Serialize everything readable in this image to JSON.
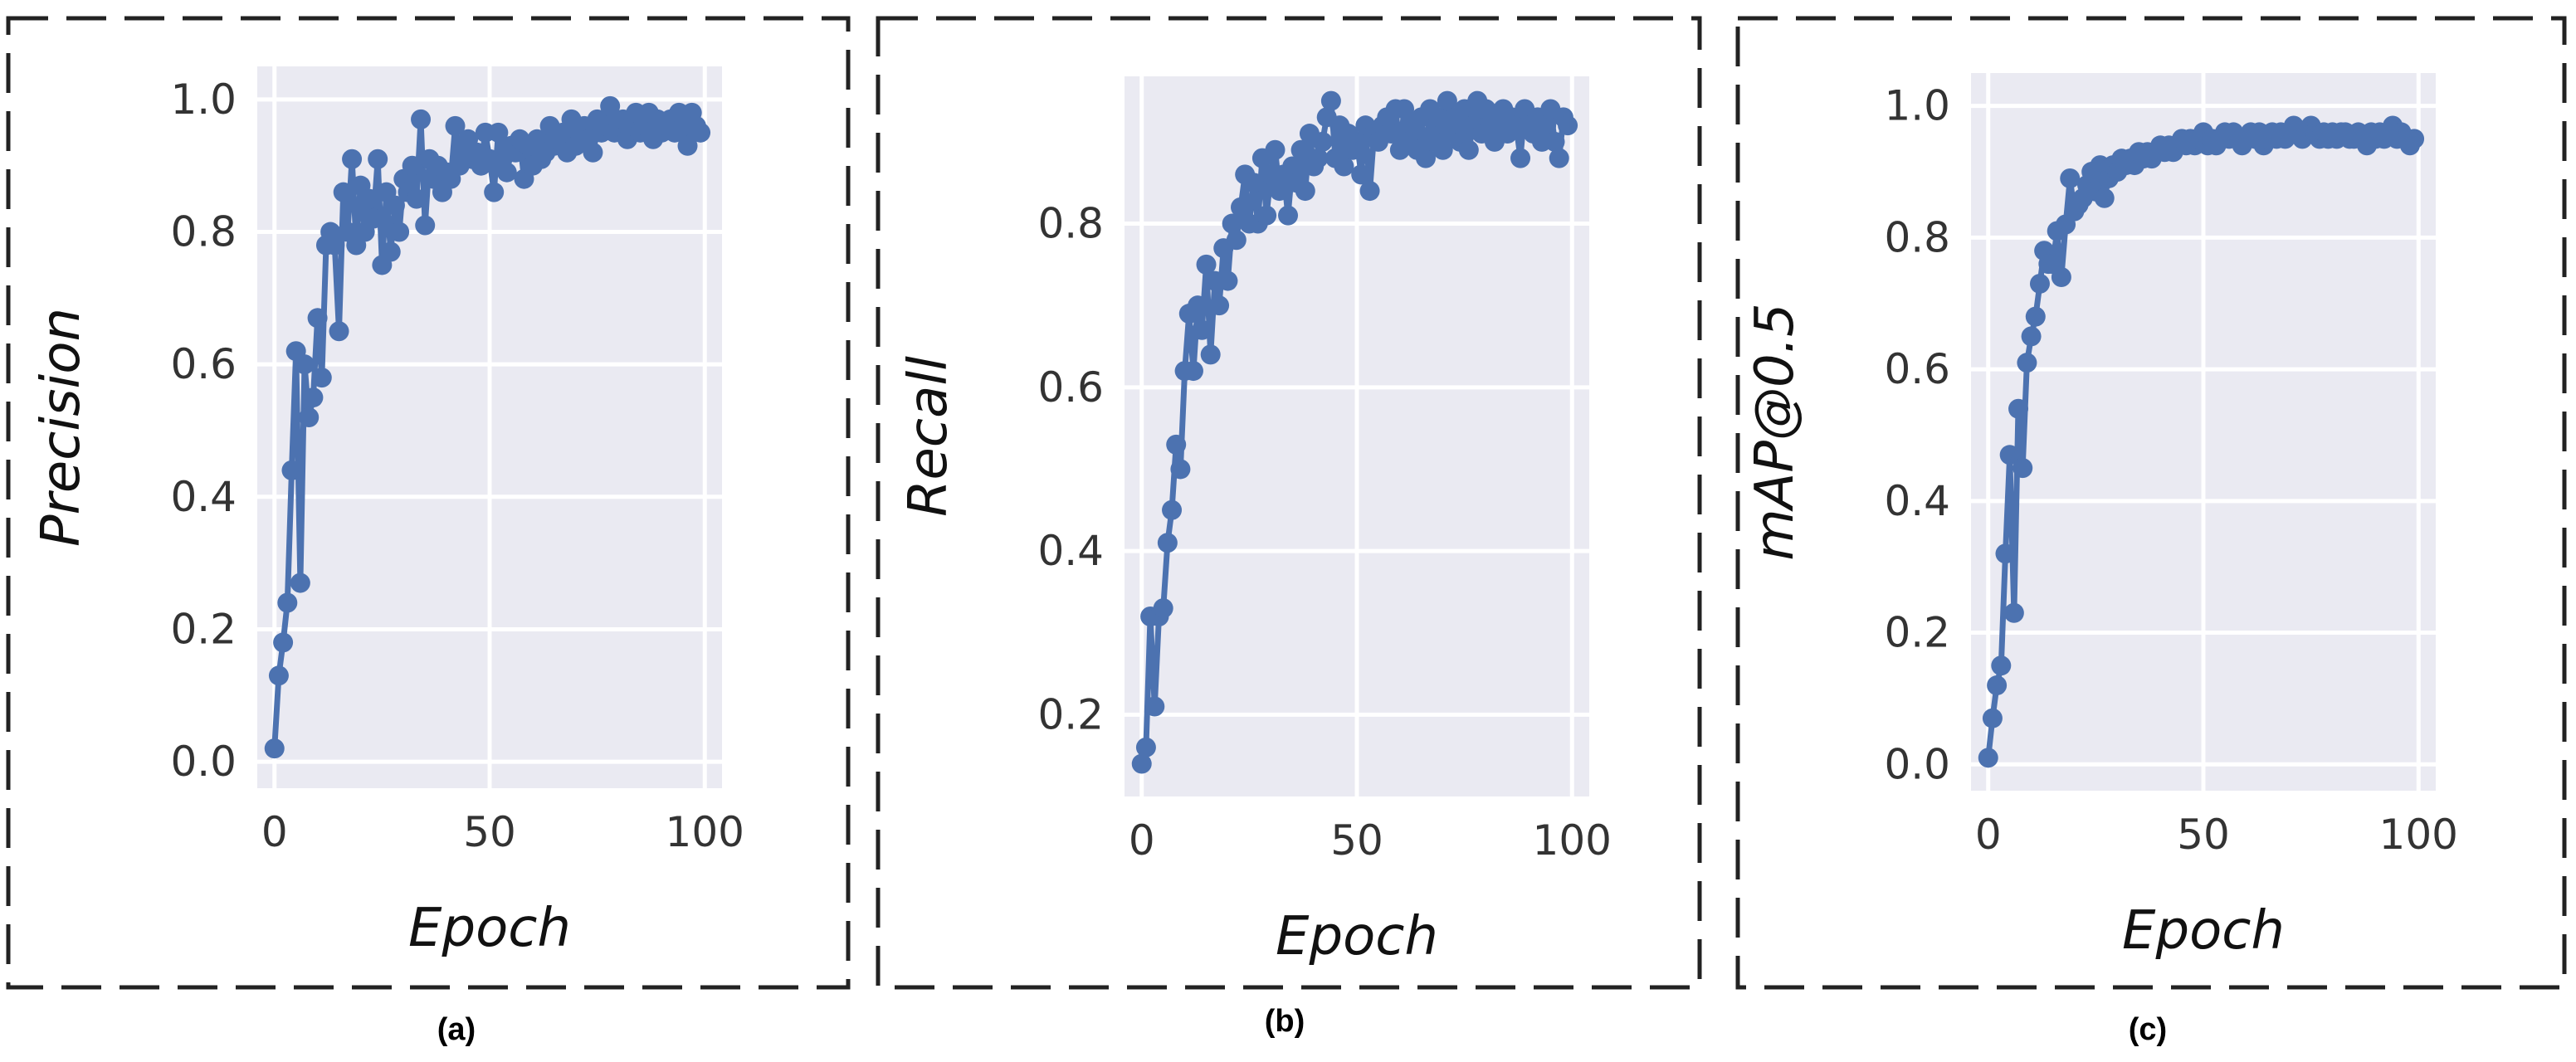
{
  "chart_data": [
    {
      "type": "line",
      "panel_label": "(a)",
      "xlabel": "Epoch",
      "ylabel": "Precision",
      "xlim": [
        -4,
        104
      ],
      "ylim": [
        -0.04,
        1.05
      ],
      "xticks": [
        0,
        50,
        100
      ],
      "yticks": [
        0.0,
        0.2,
        0.4,
        0.6,
        0.8,
        1.0
      ],
      "ytick_labels": [
        "0.0",
        "0.2",
        "0.4",
        "0.6",
        "0.8",
        "1.0"
      ],
      "grid": true,
      "series": [
        {
          "color": "#4c72b0",
          "x": [
            0,
            1,
            2,
            3,
            4,
            5,
            6,
            7,
            8,
            9,
            10,
            11,
            12,
            13,
            14,
            15,
            16,
            17,
            18,
            19,
            20,
            21,
            22,
            23,
            24,
            25,
            26,
            27,
            28,
            29,
            30,
            31,
            32,
            33,
            34,
            35,
            36,
            37,
            38,
            39,
            40,
            41,
            42,
            43,
            44,
            45,
            46,
            47,
            48,
            49,
            50,
            51,
            52,
            53,
            54,
            55,
            56,
            57,
            58,
            59,
            60,
            61,
            62,
            63,
            64,
            65,
            66,
            67,
            68,
            69,
            70,
            71,
            72,
            73,
            74,
            75,
            76,
            77,
            78,
            79,
            80,
            81,
            82,
            83,
            84,
            85,
            86,
            87,
            88,
            89,
            90,
            91,
            92,
            93,
            94,
            95,
            96,
            97,
            98,
            99
          ],
          "y": [
            0.02,
            0.13,
            0.18,
            0.24,
            0.44,
            0.62,
            0.27,
            0.6,
            0.52,
            0.55,
            0.67,
            0.58,
            0.78,
            0.8,
            0.78,
            0.65,
            0.86,
            0.8,
            0.91,
            0.78,
            0.87,
            0.8,
            0.85,
            0.82,
            0.91,
            0.75,
            0.86,
            0.77,
            0.84,
            0.8,
            0.88,
            0.86,
            0.9,
            0.85,
            0.97,
            0.81,
            0.91,
            0.88,
            0.9,
            0.86,
            0.89,
            0.88,
            0.96,
            0.9,
            0.92,
            0.94,
            0.91,
            0.92,
            0.9,
            0.95,
            0.91,
            0.86,
            0.95,
            0.91,
            0.89,
            0.93,
            0.92,
            0.94,
            0.88,
            0.93,
            0.9,
            0.94,
            0.91,
            0.92,
            0.96,
            0.93,
            0.94,
            0.95,
            0.92,
            0.97,
            0.93,
            0.95,
            0.96,
            0.94,
            0.92,
            0.97,
            0.95,
            0.96,
            0.99,
            0.95,
            0.96,
            0.97,
            0.94,
            0.96,
            0.98,
            0.95,
            0.96,
            0.98,
            0.94,
            0.97,
            0.95,
            0.96,
            0.97,
            0.95,
            0.98,
            0.96,
            0.93,
            0.98,
            0.96,
            0.95
          ]
        }
      ]
    },
    {
      "type": "line",
      "panel_label": "(b)",
      "xlabel": "Epoch",
      "ylabel": "Recall",
      "xlim": [
        -4,
        104
      ],
      "ylim": [
        0.1,
        0.98
      ],
      "xticks": [
        0,
        50,
        100
      ],
      "yticks": [
        0.2,
        0.4,
        0.6,
        0.8
      ],
      "ytick_labels": [
        "0.2",
        "0.4",
        "0.6",
        "0.8"
      ],
      "grid": true,
      "series": [
        {
          "color": "#4c72b0",
          "x": [
            0,
            1,
            2,
            3,
            4,
            5,
            6,
            7,
            8,
            9,
            10,
            11,
            12,
            13,
            14,
            15,
            16,
            17,
            18,
            19,
            20,
            21,
            22,
            23,
            24,
            25,
            26,
            27,
            28,
            29,
            30,
            31,
            32,
            33,
            34,
            35,
            36,
            37,
            38,
            39,
            40,
            41,
            42,
            43,
            44,
            45,
            46,
            47,
            48,
            49,
            50,
            51,
            52,
            53,
            54,
            55,
            56,
            57,
            58,
            59,
            60,
            61,
            62,
            63,
            64,
            65,
            66,
            67,
            68,
            69,
            70,
            71,
            72,
            73,
            74,
            75,
            76,
            77,
            78,
            79,
            80,
            81,
            82,
            83,
            84,
            85,
            86,
            87,
            88,
            89,
            90,
            91,
            92,
            93,
            94,
            95,
            96,
            97,
            98,
            99
          ],
          "y": [
            0.14,
            0.16,
            0.32,
            0.21,
            0.32,
            0.33,
            0.41,
            0.45,
            0.53,
            0.5,
            0.62,
            0.69,
            0.62,
            0.7,
            0.67,
            0.75,
            0.64,
            0.73,
            0.7,
            0.77,
            0.73,
            0.8,
            0.78,
            0.82,
            0.86,
            0.8,
            0.85,
            0.8,
            0.88,
            0.81,
            0.86,
            0.89,
            0.84,
            0.86,
            0.81,
            0.87,
            0.85,
            0.89,
            0.84,
            0.91,
            0.87,
            0.88,
            0.9,
            0.93,
            0.95,
            0.88,
            0.92,
            0.87,
            0.91,
            0.89,
            0.9,
            0.86,
            0.92,
            0.84,
            0.91,
            0.9,
            0.92,
            0.93,
            0.91,
            0.94,
            0.89,
            0.94,
            0.9,
            0.92,
            0.89,
            0.93,
            0.88,
            0.94,
            0.9,
            0.93,
            0.89,
            0.95,
            0.91,
            0.93,
            0.9,
            0.94,
            0.89,
            0.92,
            0.95,
            0.91,
            0.94,
            0.92,
            0.9,
            0.93,
            0.94,
            0.91,
            0.93,
            0.92,
            0.88,
            0.94,
            0.92,
            0.91,
            0.93,
            0.9,
            0.92,
            0.94,
            0.9,
            0.88,
            0.93,
            0.92
          ]
        }
      ]
    },
    {
      "type": "line",
      "panel_label": "(c)",
      "xlabel": "Epoch",
      "ylabel": "mAP@0.5",
      "xlim": [
        -4,
        104
      ],
      "ylim": [
        -0.04,
        1.05
      ],
      "xticks": [
        0,
        50,
        100
      ],
      "yticks": [
        0.0,
        0.2,
        0.4,
        0.6,
        0.8,
        1.0
      ],
      "ytick_labels": [
        "0.0",
        "0.2",
        "0.4",
        "0.6",
        "0.8",
        "1.0"
      ],
      "grid": true,
      "series": [
        {
          "color": "#4c72b0",
          "x": [
            0,
            1,
            2,
            3,
            4,
            5,
            6,
            7,
            8,
            9,
            10,
            11,
            12,
            13,
            14,
            15,
            16,
            17,
            18,
            19,
            20,
            21,
            22,
            23,
            24,
            25,
            26,
            27,
            28,
            29,
            30,
            31,
            32,
            33,
            34,
            35,
            36,
            37,
            38,
            39,
            40,
            41,
            42,
            43,
            44,
            45,
            46,
            47,
            48,
            49,
            50,
            51,
            52,
            53,
            54,
            55,
            56,
            57,
            58,
            59,
            60,
            61,
            62,
            63,
            64,
            65,
            66,
            67,
            68,
            69,
            70,
            71,
            72,
            73,
            74,
            75,
            76,
            77,
            78,
            79,
            80,
            81,
            82,
            83,
            84,
            85,
            86,
            87,
            88,
            89,
            90,
            91,
            92,
            93,
            94,
            95,
            96,
            97,
            98,
            99
          ],
          "y": [
            0.01,
            0.07,
            0.12,
            0.15,
            0.32,
            0.47,
            0.23,
            0.54,
            0.45,
            0.61,
            0.65,
            0.68,
            0.73,
            0.78,
            0.76,
            0.76,
            0.81,
            0.74,
            0.82,
            0.89,
            0.84,
            0.85,
            0.86,
            0.88,
            0.9,
            0.87,
            0.91,
            0.86,
            0.89,
            0.91,
            0.9,
            0.92,
            0.91,
            0.92,
            0.91,
            0.93,
            0.92,
            0.93,
            0.92,
            0.93,
            0.94,
            0.93,
            0.94,
            0.93,
            0.94,
            0.95,
            0.94,
            0.95,
            0.94,
            0.95,
            0.96,
            0.94,
            0.95,
            0.94,
            0.95,
            0.96,
            0.95,
            0.96,
            0.95,
            0.94,
            0.95,
            0.96,
            0.95,
            0.96,
            0.94,
            0.95,
            0.96,
            0.95,
            0.96,
            0.95,
            0.96,
            0.97,
            0.96,
            0.95,
            0.96,
            0.97,
            0.96,
            0.95,
            0.96,
            0.95,
            0.96,
            0.95,
            0.96,
            0.96,
            0.95,
            0.95,
            0.96,
            0.95,
            0.94,
            0.96,
            0.95,
            0.96,
            0.95,
            0.96,
            0.97,
            0.95,
            0.96,
            0.95,
            0.94,
            0.95
          ]
        }
      ]
    }
  ]
}
